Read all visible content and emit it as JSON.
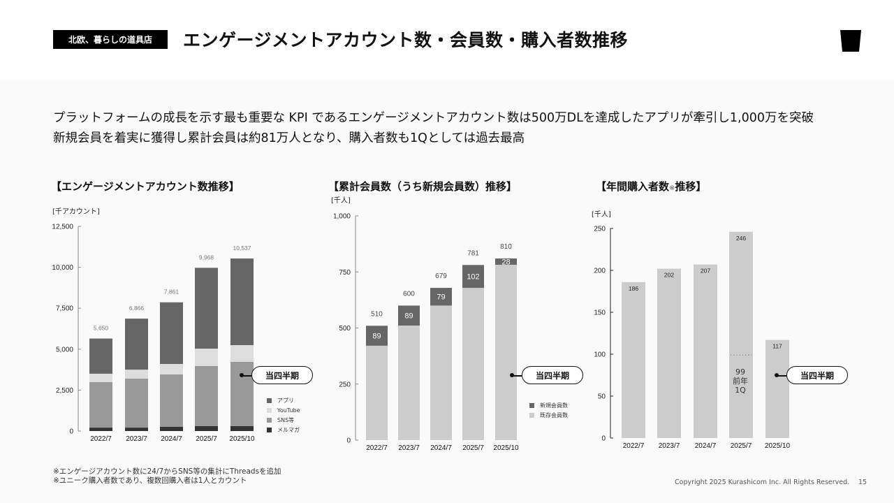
{
  "header": {
    "brand_label": "北欧、暮らしの道具店",
    "title": "エンゲージメントアカウント数・会員数・購入者数推移",
    "logo_icon": "cup-icon"
  },
  "summary": {
    "line1": "プラットフォームの成長を示す最も重要な KPI であるエンゲージメントアカウント数は500万DLを達成したアプリが牽引し1,000万を突破",
    "line2": "新規会員を着実に獲得し累計会員は約81万人となり、購入者数も1Qとしては過去最高"
  },
  "callout_label": "当四半期",
  "colors": {
    "app": "#666666",
    "youtube": "#dddddd",
    "sns": "#999999",
    "mailmag": "#333333",
    "new_members": "#666666",
    "existing_members": "#cccccc",
    "buyers": "#cccccc"
  },
  "chart_data": [
    {
      "type": "bar",
      "stacked": true,
      "title": "【エンゲージメントアカウント数推移】",
      "ylabel": "[千アカウント]",
      "ylim": [
        0,
        12500
      ],
      "yticks": [
        "0",
        "2,500",
        "5,000",
        "7,500",
        "10,000",
        "12,500"
      ],
      "ytick_values": [
        0,
        2500,
        5000,
        7500,
        10000,
        12500
      ],
      "categories": [
        "2022/7",
        "2023/7",
        "2024/7",
        "2025/7",
        "2025/10"
      ],
      "totals": [
        5650,
        6866,
        7861,
        9968,
        10537
      ],
      "total_labels": [
        "5,650",
        "6,866",
        "7,861",
        "9,968",
        "10,537"
      ],
      "series": [
        {
          "name": "メルマガ",
          "key": "mailmag",
          "values": [
            210,
            210,
            256,
            300,
            300
          ]
        },
        {
          "name": "SNS等",
          "key": "sns",
          "values": [
            2780,
            2990,
            3200,
            3667,
            3923
          ]
        },
        {
          "name": "YouTube",
          "key": "youtube",
          "values": [
            510,
            550,
            640,
            1067,
            1024
          ]
        },
        {
          "name": "アプリ",
          "key": "app",
          "values": [
            2150,
            3116,
            3765,
            4934,
            5290
          ]
        }
      ],
      "legend": [
        "アプリ",
        "YouTube",
        "SNS等",
        "メルマガ"
      ],
      "legend_position": "bottom-right",
      "highlight_category": "2025/10"
    },
    {
      "type": "bar",
      "stacked": true,
      "title": "【累計会員数（うち新規会員数）推移】",
      "ylabel": "[千人]",
      "ylim": [
        0,
        1000
      ],
      "yticks": [
        "0",
        "250",
        "500",
        "750",
        "1,000"
      ],
      "ytick_values": [
        0,
        250,
        500,
        750,
        1000
      ],
      "categories": [
        "2022/7",
        "2023/7",
        "2024/7",
        "2025/7",
        "2025/10"
      ],
      "totals": [
        510,
        600,
        679,
        781,
        810
      ],
      "total_labels": [
        "510",
        "600",
        "679",
        "781",
        "810"
      ],
      "series": [
        {
          "name": "既存会員数",
          "key": "existing_members",
          "values": [
            421,
            511,
            600,
            679,
            782
          ]
        },
        {
          "name": "新規会員数",
          "key": "new_members",
          "values": [
            89,
            89,
            79,
            102,
            28
          ]
        }
      ],
      "legend": [
        "新規会員数",
        "既存会員数"
      ],
      "legend_position": "bottom-right",
      "highlight_category": "2025/10"
    },
    {
      "type": "bar",
      "stacked": false,
      "title": "【年間購入者数※推移】",
      "title_main": "【年間購入者数",
      "title_mark": "※",
      "title_end": "推移】",
      "ylabel": "[千人]",
      "ylim": [
        0,
        250
      ],
      "yticks": [
        "0",
        "50",
        "100",
        "150",
        "200",
        "250"
      ],
      "ytick_values": [
        0,
        50,
        100,
        150,
        200,
        250
      ],
      "categories": [
        "2022/7",
        "2023/7",
        "2024/7",
        "2025/7",
        "2025/10"
      ],
      "values": [
        186,
        202,
        207,
        246,
        117
      ],
      "value_labels": [
        "186",
        "202",
        "207",
        "246",
        "117"
      ],
      "annotation": {
        "category": "2025/7",
        "value": 99,
        "label_value": "99",
        "label_line1": "前年",
        "label_line2": "1Q"
      },
      "highlight_category": "2025/10"
    }
  ],
  "notes": {
    "line1": "※エンゲージアカウント数に24/7からSNS等の集計にThreadsを追加",
    "line2": "※ユニーク購入者数であり、複数回購入者は1人とカウント"
  },
  "footer": {
    "copyright": "Copyright 2025 Kurashicom Inc. All Rights Reserved.",
    "page_number": "15"
  }
}
